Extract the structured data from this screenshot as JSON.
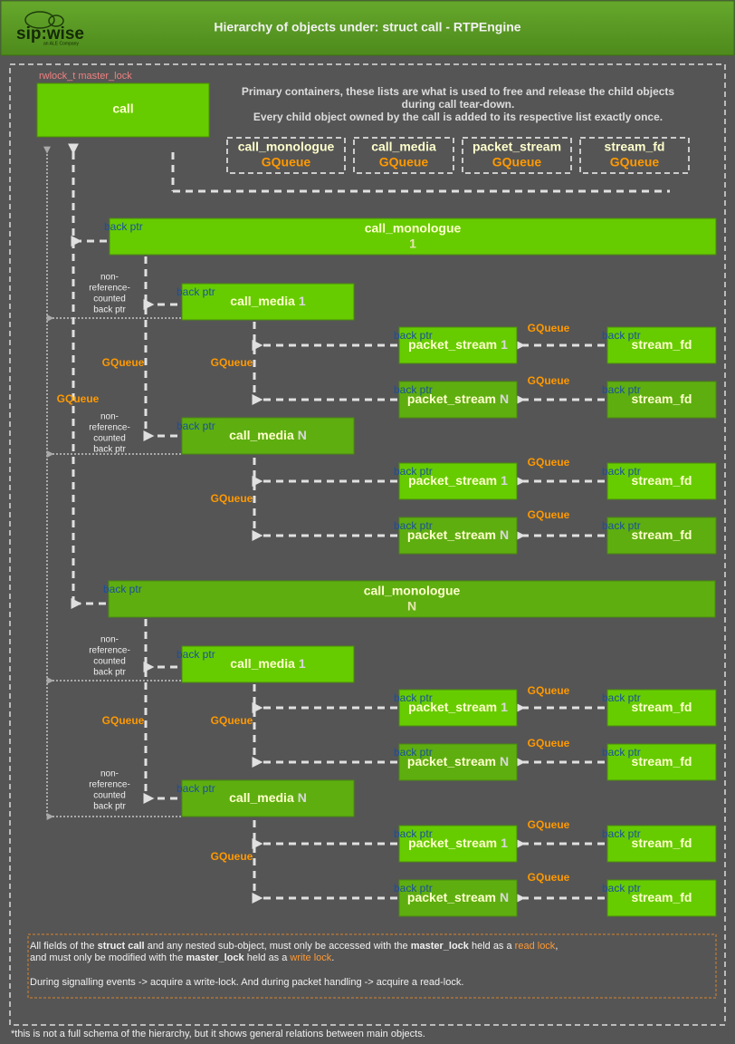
{
  "header": {
    "logo": "sip:wise",
    "logo_sub": "an ALE Company",
    "title": "Hierarchy of objects under: struct call - RTPEngine"
  },
  "lock_label": "rwlock_t master_lock",
  "call": "call",
  "containers_note": [
    "Primary containers, these lists are what is used to free and release the child objects",
    "during call tear-down.",
    "Every child object owned by the call is added to its respective list exactly once."
  ],
  "containers": [
    {
      "name": "call_monologue",
      "kind": "GQueue"
    },
    {
      "name": "call_media",
      "kind": "GQueue"
    },
    {
      "name": "packet_stream",
      "kind": "GQueue"
    },
    {
      "name": "stream_fd",
      "kind": "GQueue"
    }
  ],
  "nodes": [
    {
      "name": "call_monologue",
      "index": "1"
    },
    {
      "name": "call_media",
      "index": "1"
    },
    {
      "name": "packet_stream",
      "index": "1"
    },
    {
      "name": "stream_fd"
    },
    {
      "name": "packet_stream",
      "index": "N"
    },
    {
      "name": "stream_fd"
    },
    {
      "name": "call_media",
      "index": "N"
    },
    {
      "name": "packet_stream",
      "index": "1"
    },
    {
      "name": "stream_fd"
    },
    {
      "name": "packet_stream",
      "index": "N"
    },
    {
      "name": "stream_fd"
    },
    {
      "name": "call_monologue",
      "index": "N"
    },
    {
      "name": "call_media",
      "index": "1"
    },
    {
      "name": "packet_stream",
      "index": "1"
    },
    {
      "name": "stream_fd"
    },
    {
      "name": "packet_stream",
      "index": "N"
    },
    {
      "name": "stream_fd"
    },
    {
      "name": "call_media",
      "index": "N"
    },
    {
      "name": "packet_stream",
      "index": "1"
    },
    {
      "name": "stream_fd"
    },
    {
      "name": "packet_stream",
      "index": "N"
    },
    {
      "name": "stream_fd"
    }
  ],
  "labels": {
    "back_ptr": "back ptr",
    "gqueue": "GQueue",
    "non_ref": [
      "non-",
      "reference-",
      "counted",
      "back ptr"
    ]
  },
  "rules": [
    [
      {
        "text": "All fields of the "
      },
      {
        "text": "struct call",
        "emphasis": "bold"
      },
      {
        "text": " and any nested sub-object, must only be accessed with the "
      },
      {
        "text": "master_lock",
        "emphasis": "bold"
      },
      {
        "text": " held as a "
      },
      {
        "text": "read lock",
        "emphasis": "orange"
      },
      {
        "text": ","
      }
    ],
    [
      {
        "text": "and must only be modified with the "
      },
      {
        "text": "master_lock",
        "emphasis": "bold"
      },
      {
        "text": " held as a "
      },
      {
        "text": "write lock",
        "emphasis": "orange"
      },
      {
        "text": "."
      }
    ],
    [
      {
        "text": "During signalling events -> acquire a write-lock. And during packet handling -> acquire a read-lock."
      }
    ]
  ],
  "footnote": "*this is not a full schema of the hierarchy, but it shows general relations between main objects."
}
